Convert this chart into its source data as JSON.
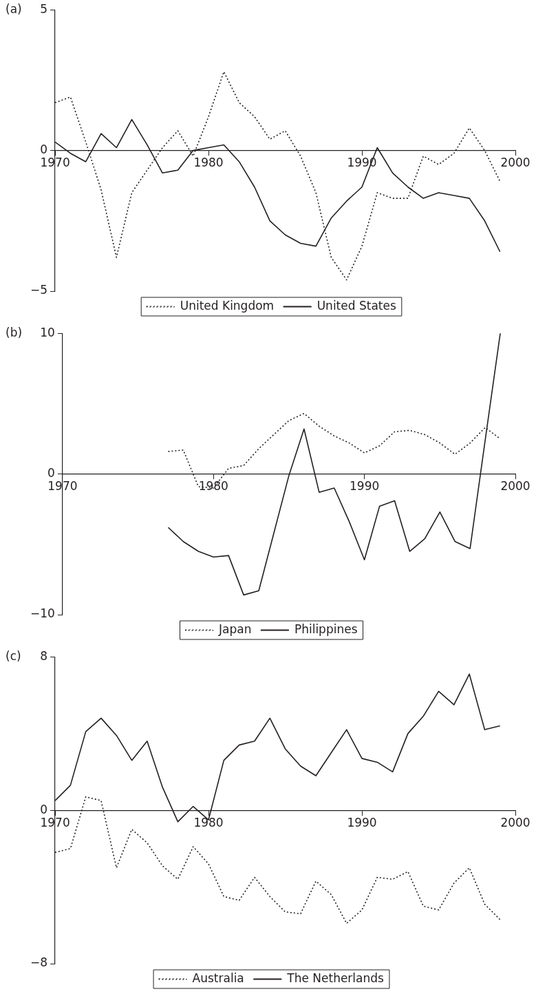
{
  "chart_data": [
    {
      "type": "line",
      "title": "(a)",
      "x": [
        1970,
        1971,
        1972,
        1973,
        1974,
        1975,
        1976,
        1977,
        1978,
        1979,
        1980,
        1981,
        1982,
        1983,
        1984,
        1985,
        1986,
        1987,
        1988,
        1989,
        1990,
        1991,
        1992,
        1993,
        1994,
        1995,
        1996,
        1997,
        1998,
        1999
      ],
      "series": [
        {
          "name": "United Kingdom",
          "color": "#231f20",
          "line_style": "dotted",
          "values": [
            1.7,
            1.9,
            0.3,
            -1.4,
            -3.8,
            -1.5,
            -0.7,
            0.1,
            0.7,
            -0.2,
            1.2,
            2.8,
            1.7,
            1.2,
            0.4,
            0.7,
            -0.2,
            -1.5,
            -3.8,
            -4.6,
            -3.4,
            -1.5,
            -1.7,
            -1.7,
            -0.2,
            -0.5,
            -0.1,
            0.8,
            0,
            -1.1
          ]
        },
        {
          "name": "United States",
          "color": "#231f20",
          "line_style": "solid",
          "values": [
            0.3,
            -0.1,
            -0.4,
            0.6,
            0.1,
            1.1,
            0.2,
            -0.8,
            -0.7,
            0,
            0.1,
            0.2,
            -0.4,
            -1.3,
            -2.5,
            -3,
            -3.3,
            -3.4,
            -2.4,
            -1.8,
            -1.3,
            0.1,
            -0.8,
            -1.3,
            -1.7,
            -1.5,
            -1.6,
            -1.7,
            -2.5,
            -3.6
          ]
        }
      ],
      "xlim": [
        1970,
        2000
      ],
      "xticks": [
        1970,
        1980,
        1990,
        2000
      ],
      "ylim": [
        -5,
        5
      ],
      "yticks": [
        -5,
        0,
        5
      ],
      "grid": false,
      "legend": "bottom",
      "marker": "none"
    },
    {
      "type": "line",
      "title": "(b)",
      "x": [
        1977,
        1978,
        1979,
        1980,
        1981,
        1982,
        1983,
        1984,
        1985,
        1986,
        1987,
        1988,
        1989,
        1990,
        1991,
        1992,
        1993,
        1994,
        1995,
        1996,
        1997,
        1998,
        1999
      ],
      "series": [
        {
          "name": "Japan",
          "color": "#231f20",
          "line_style": "dotted",
          "values": [
            1.6,
            1.7,
            -0.9,
            -1,
            0.4,
            0.6,
            1.8,
            2.8,
            3.8,
            4.3,
            3.4,
            2.7,
            2.2,
            1.5,
            2,
            3,
            3.1,
            2.8,
            2.2,
            1.4,
            2.2,
            3.3,
            2.5
          ]
        },
        {
          "name": "Philippines",
          "color": "#231f20",
          "line_style": "solid",
          "values": [
            -3.8,
            -4.8,
            -5.5,
            -5.9,
            -5.8,
            -8.6,
            -8.3,
            -4.2,
            -0.1,
            3.2,
            -1.3,
            -1,
            -3.4,
            -6.1,
            -2.3,
            -1.9,
            -5.5,
            -4.6,
            -2.7,
            -4.8,
            -5.3,
            2.4,
            10
          ]
        }
      ],
      "xlim": [
        1970,
        2000
      ],
      "xticks": [
        1970,
        1980,
        1990,
        2000
      ],
      "ylim": [
        -10,
        10
      ],
      "yticks": [
        -10,
        0,
        10
      ],
      "grid": false,
      "legend": "bottom",
      "marker": "none"
    },
    {
      "type": "line",
      "title": "(c)",
      "x": [
        1970,
        1971,
        1972,
        1973,
        1974,
        1975,
        1976,
        1977,
        1978,
        1979,
        1980,
        1981,
        1982,
        1983,
        1984,
        1985,
        1986,
        1987,
        1988,
        1989,
        1990,
        1991,
        1992,
        1993,
        1994,
        1995,
        1996,
        1997,
        1998,
        1999
      ],
      "series": [
        {
          "name": "Australia",
          "color": "#231f20",
          "line_style": "dotted",
          "values": [
            -2.2,
            -2,
            0.7,
            0.5,
            -3,
            -1,
            -1.7,
            -2.9,
            -3.6,
            -1.9,
            -2.8,
            -4.5,
            -4.7,
            -3.5,
            -4.5,
            -5.3,
            -5.4,
            -3.7,
            -4.4,
            -5.9,
            -5.2,
            -3.5,
            -3.6,
            -3.2,
            -5,
            -5.2,
            -3.8,
            -3,
            -4.9,
            -5.7
          ]
        },
        {
          "name": "The Netherlands",
          "color": "#231f20",
          "line_style": "solid",
          "values": [
            0.5,
            1.3,
            4.1,
            4.8,
            3.9,
            2.6,
            3.6,
            1.2,
            -0.6,
            0.2,
            -0.5,
            2.6,
            3.4,
            3.6,
            4.8,
            3.2,
            2.3,
            1.8,
            3,
            4.2,
            2.7,
            2.5,
            2,
            4,
            4.9,
            6.2,
            5.5,
            7.1,
            4.2,
            4.4
          ]
        }
      ],
      "xlim": [
        1970,
        2000
      ],
      "xticks": [
        1970,
        1980,
        1990,
        2000
      ],
      "ylim": [
        -8,
        8
      ],
      "yticks": [
        -8,
        0,
        8
      ],
      "grid": false,
      "legend": "bottom",
      "marker": "none"
    }
  ]
}
